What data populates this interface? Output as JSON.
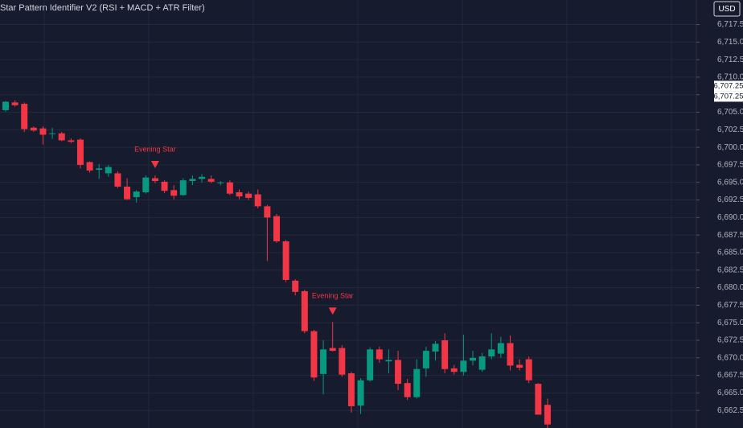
{
  "chart_data": {
    "type": "candlestick",
    "title": "Star Pattern Identifier V2 (RSI + MACD + ATR Filter)",
    "currency": "USD",
    "up_color": "#089981",
    "down_color": "#f23645",
    "grid": true,
    "ylim": [
      6660,
      6721
    ],
    "yticks": [
      {
        "value": 6662.5,
        "label": "6,662.50"
      },
      {
        "value": 6665,
        "label": "6,665.00"
      },
      {
        "value": 6667.5,
        "label": "6,667.50"
      },
      {
        "value": 6670,
        "label": "6,670.00"
      },
      {
        "value": 6672.5,
        "label": "6,672.50"
      },
      {
        "value": 6675,
        "label": "6,675.00"
      },
      {
        "value": 6677.5,
        "label": "6,677.50"
      },
      {
        "value": 6680,
        "label": "6,680.00"
      },
      {
        "value": 6682.5,
        "label": "6,682.50"
      },
      {
        "value": 6685,
        "label": "6,685.00"
      },
      {
        "value": 6687.5,
        "label": "6,687.50"
      },
      {
        "value": 6690,
        "label": "6,690.00"
      },
      {
        "value": 6692.5,
        "label": "6,692.50"
      },
      {
        "value": 6695,
        "label": "6,695.00"
      },
      {
        "value": 6697.5,
        "label": "6,697.50"
      },
      {
        "value": 6700,
        "label": "6,700.00"
      },
      {
        "value": 6702.5,
        "label": "6,702.50"
      },
      {
        "value": 6705,
        "label": "6,705.00"
      },
      {
        "value": 6707.5,
        "label": "6,707.50"
      },
      {
        "value": 6710,
        "label": "6,710.00"
      },
      {
        "value": 6712.5,
        "label": "6,712.50"
      },
      {
        "value": 6715,
        "label": "6,715.00"
      },
      {
        "value": 6717.5,
        "label": "6,717.50"
      }
    ],
    "price_markers": [
      {
        "value": 6707.25,
        "label": "6,707.25"
      },
      {
        "value": 6707.25,
        "label": "6,707.25"
      }
    ],
    "annotations": [
      {
        "label": "Evening Star",
        "index": 16
      },
      {
        "label": "Evening Star",
        "index": 35
      }
    ],
    "open": [
      6705.3,
      6706.4,
      6706.2,
      6702.8,
      6702.7,
      6701.9,
      6702.0,
      6701.0,
      6701.1,
      6697.9,
      6696.8,
      6696.3,
      6696.3,
      6694.4,
      6692.9,
      6693.6,
      6695.6,
      6695.1,
      6693.9,
      6693.2,
      6695.2,
      6695.5,
      6695.5,
      6694.9,
      6695.0,
      6693.6,
      6693.4,
      6693.3,
      6691.6,
      6690.2,
      6686.6,
      6681.0,
      6679.5,
      6673.8,
      6667.7,
      6671.4,
      6671.4,
      6667.8,
      6663.2,
      6666.8,
      6671.2,
      6669.5,
      6669.7,
      6666.4,
      6664.4,
      6668.5,
      6670.9,
      6672.5,
      6668.5,
      6668.0,
      6669.6,
      6668.3,
      6670.2,
      6670.6,
      6672.1,
      6669.0,
      6669.8,
      6666.3,
      6663.3
    ],
    "high": [
      6706.6,
      6706.7,
      6706.4,
      6703.0,
      6703.0,
      6702.8,
      6702.2,
      6701.3,
      6701.3,
      6698.0,
      6697.6,
      6697.5,
      6696.6,
      6695.6,
      6693.9,
      6696.0,
      6696.0,
      6695.3,
      6694.6,
      6695.6,
      6696.0,
      6696.2,
      6696.0,
      6695.2,
      6695.3,
      6694.0,
      6693.7,
      6694.0,
      6691.8,
      6690.5,
      6686.8,
      6681.2,
      6679.7,
      6674.0,
      6672.5,
      6675.1,
      6671.8,
      6668.0,
      6667.1,
      6671.5,
      6671.6,
      6671.2,
      6671.0,
      6667.0,
      6669.8,
      6671.6,
      6672.4,
      6673.5,
      6669.0,
      6673.3,
      6671.0,
      6670.7,
      6673.5,
      6673.0,
      6673.2,
      6669.8,
      6670.2,
      6666.4,
      6664.2
    ],
    "low": [
      6705.1,
      6705.8,
      6702.2,
      6702.2,
      6700.4,
      6701.2,
      6700.9,
      6700.6,
      6697.0,
      6696.4,
      6695.5,
      6695.8,
      6694.2,
      6692.5,
      6692.1,
      6693.4,
      6694.9,
      6693.5,
      6692.6,
      6693.1,
      6694.6,
      6695.0,
      6694.9,
      6694.6,
      6693.2,
      6692.6,
      6692.5,
      6691.3,
      6683.8,
      6686.4,
      6680.8,
      6678.9,
      6673.5,
      6666.7,
      6664.8,
      6670.9,
      6667.3,
      6662.2,
      6662.0,
      6666.6,
      6669.3,
      6667.8,
      6665.4,
      6664.0,
      6664.2,
      6667.3,
      6669.6,
      6667.8,
      6667.6,
      6667.5,
      6668.9,
      6668.0,
      6669.8,
      6670.0,
      6668.2,
      6668.2,
      6666.4,
      6661.9,
      6660
    ],
    "close": [
      6706.5,
      6706.0,
      6702.6,
      6702.4,
      6701.8,
      6702.0,
      6701.0,
      6700.8,
      6697.5,
      6696.7,
      6697.0,
      6697.2,
      6694.4,
      6692.6,
      6693.7,
      6695.7,
      6695.2,
      6693.8,
      6693.1,
      6695.3,
      6695.5,
      6695.8,
      6695.1,
      6695.0,
      6693.4,
      6693.0,
      6692.8,
      6691.6,
      6690.0,
      6686.6,
      6681.1,
      6679.4,
      6673.8,
      6667.2,
      6671.2,
      6671.0,
      6667.6,
      6663.1,
      6666.8,
      6671.2,
      6669.8,
      6669.7,
      6666.3,
      6664.4,
      6668.4,
      6671.0,
      6672.0,
      6668.4,
      6668.0,
      6669.6,
      6670.0,
      6670.2,
      6671.2,
      6672.1,
      6668.9,
      6668.6,
      6666.8,
      6661.9,
      6660.5
    ]
  }
}
